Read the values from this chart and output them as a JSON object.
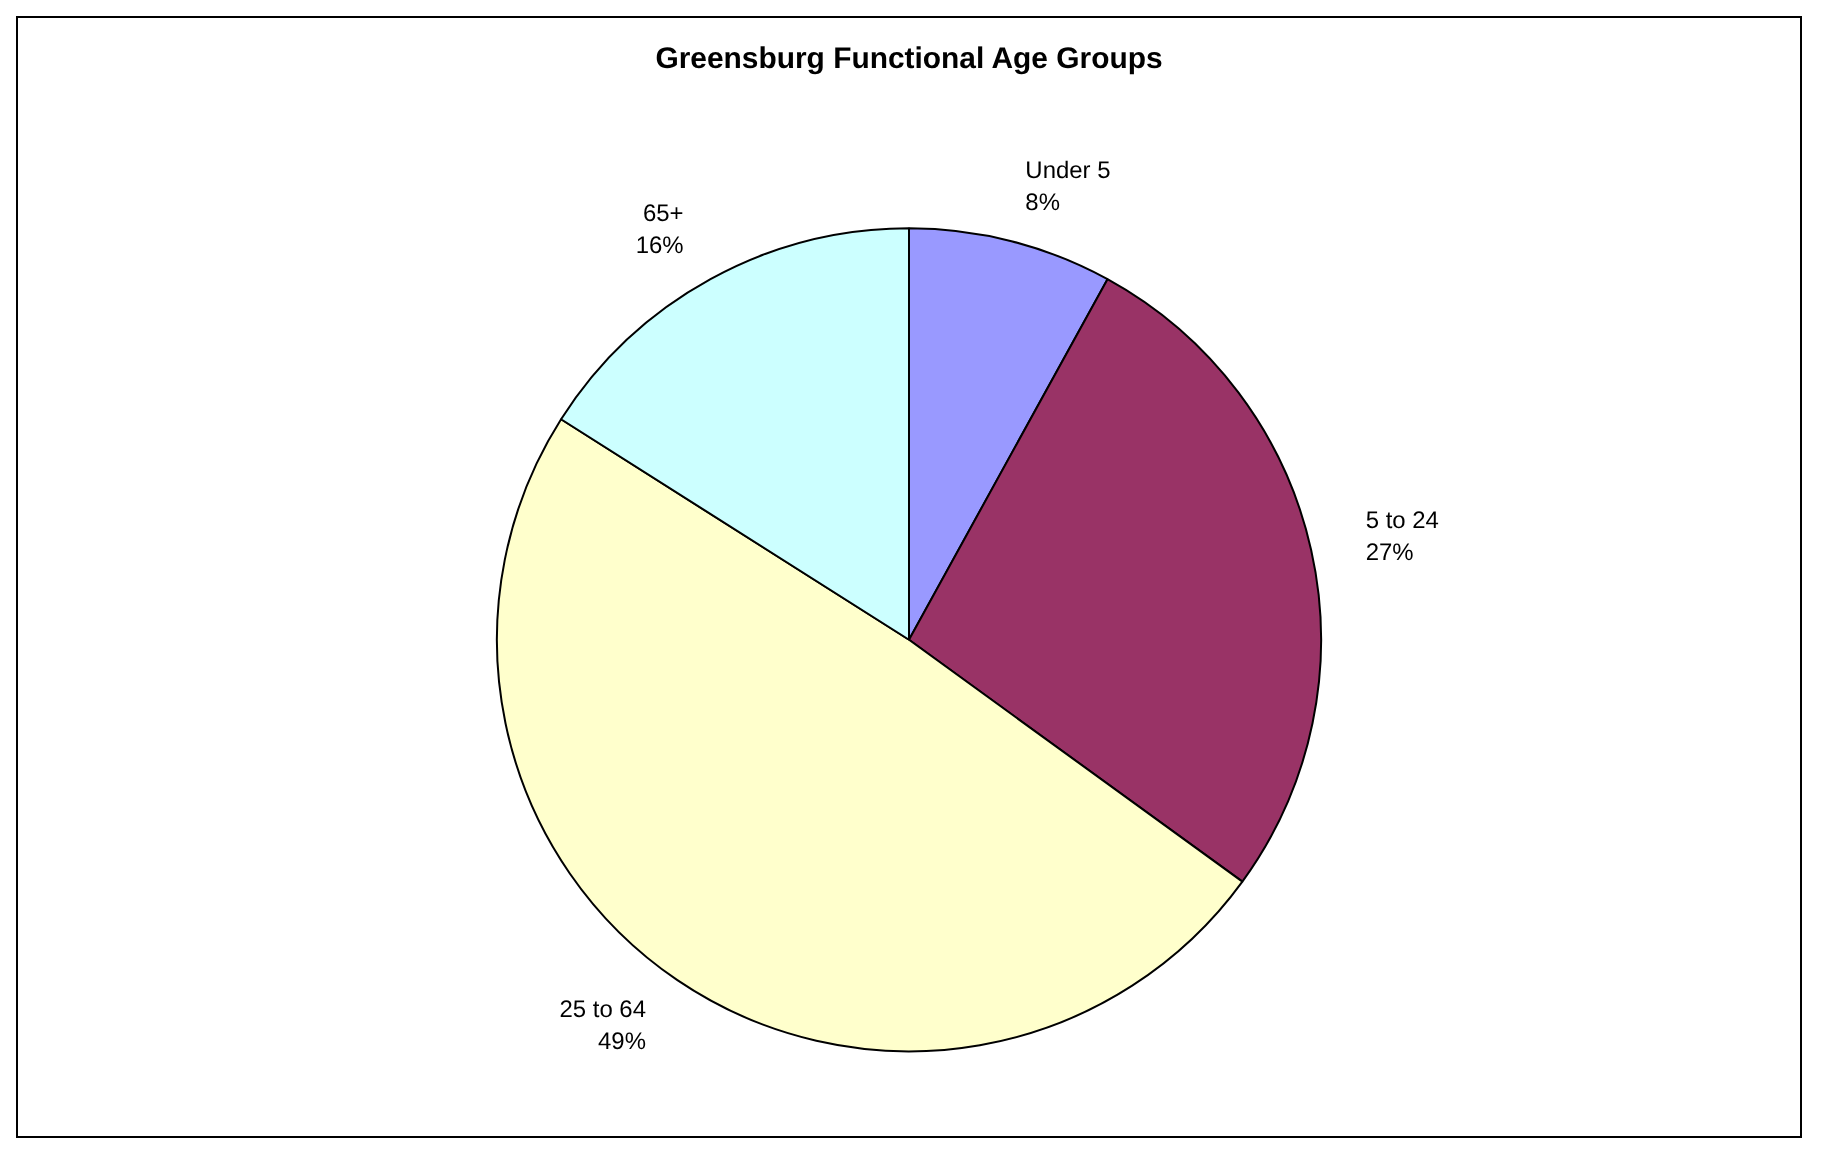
{
  "chart_data": {
    "type": "pie",
    "title": "Greensburg Functional Age Groups",
    "categories": [
      "Under 5",
      "5 to 24",
      "25 to 64",
      "65+"
    ],
    "values": [
      8,
      27,
      49,
      16
    ],
    "colors": [
      "#9999ff",
      "#993366",
      "#ffffcc",
      "#ccffff"
    ],
    "value_labels": [
      "8%",
      "27%",
      "49%",
      "16%"
    ],
    "legend": false
  }
}
